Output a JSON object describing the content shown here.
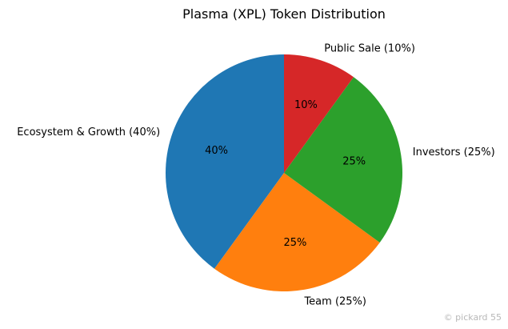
{
  "chart_data": {
    "type": "pie",
    "title": "Plasma (XPL) Token Distribution",
    "labels": [
      "Ecosystem & Growth (40%)",
      "Team (25%)",
      "Investors (25%)",
      "Public Sale (10%)"
    ],
    "values": [
      40,
      25,
      25,
      10
    ],
    "percent_labels": [
      "40%",
      "25%",
      "25%",
      "10%"
    ],
    "colors": [
      "#1f77b4",
      "#ff7f0e",
      "#2ca02c",
      "#d62728"
    ],
    "start_angle_deg": 90,
    "direction": "counterclockwise"
  },
  "watermark": "© pickard 55"
}
